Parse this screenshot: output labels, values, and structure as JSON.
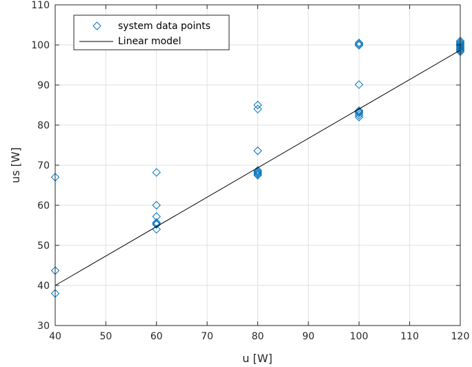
{
  "chart_data": {
    "type": "scatter",
    "title": "",
    "xlabel": "u [W]",
    "ylabel": "us [W]",
    "xlim": [
      40,
      120
    ],
    "ylim": [
      30,
      110
    ],
    "xticks": [
      40,
      50,
      60,
      70,
      80,
      90,
      100,
      110,
      120
    ],
    "yticks": [
      30,
      40,
      50,
      60,
      70,
      80,
      90,
      100,
      110
    ],
    "grid": true,
    "legend_position": "top-left",
    "series": [
      {
        "name": "system data points",
        "kind": "scatter",
        "marker": "diamond",
        "color": "#0072BD",
        "points": [
          [
            40,
            67.0
          ],
          [
            40,
            43.7
          ],
          [
            40,
            38.0
          ],
          [
            60,
            68.2
          ],
          [
            60,
            60.0
          ],
          [
            60,
            57.2
          ],
          [
            60,
            55.7
          ],
          [
            60,
            55.4
          ],
          [
            60,
            55.2
          ],
          [
            60,
            54.0
          ],
          [
            80,
            85.0
          ],
          [
            80,
            84.0
          ],
          [
            80,
            73.6
          ],
          [
            80,
            68.7
          ],
          [
            80,
            68.4
          ],
          [
            80,
            68.1
          ],
          [
            80,
            67.8
          ],
          [
            80,
            67.5
          ],
          [
            100,
            100.5
          ],
          [
            100,
            100.2
          ],
          [
            100,
            99.9
          ],
          [
            100,
            90.1
          ],
          [
            100,
            83.6
          ],
          [
            100,
            83.3
          ],
          [
            100,
            83.0
          ],
          [
            100,
            82.5
          ],
          [
            100,
            82.0
          ],
          [
            120,
            101.0
          ],
          [
            120,
            100.7
          ],
          [
            120,
            100.4
          ],
          [
            120,
            100.1
          ],
          [
            120,
            99.8
          ],
          [
            120,
            99.5
          ],
          [
            120,
            99.2
          ],
          [
            120,
            98.9
          ],
          [
            120,
            98.6
          ],
          [
            120,
            98.3
          ]
        ]
      },
      {
        "name": "Linear model",
        "kind": "line",
        "color": "#000000",
        "points": [
          [
            40,
            40.0
          ],
          [
            120,
            98.7
          ]
        ]
      }
    ]
  }
}
